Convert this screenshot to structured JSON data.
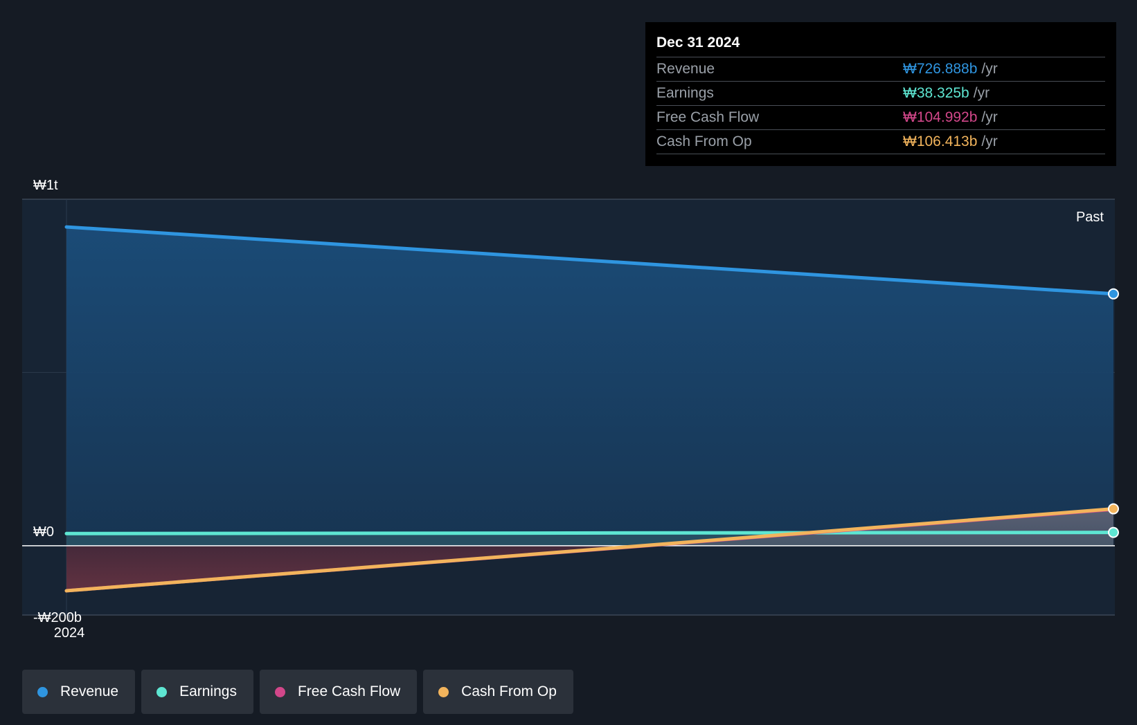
{
  "tooltip": {
    "date": "Dec 31 2024",
    "rows": [
      {
        "label": "Revenue",
        "value": "₩726.888b",
        "unit": "/yr",
        "color": "#2f95e0"
      },
      {
        "label": "Earnings",
        "value": "₩38.325b",
        "unit": "/yr",
        "color": "#5ee6d2"
      },
      {
        "label": "Free Cash Flow",
        "value": "₩104.992b",
        "unit": "/yr",
        "color": "#d2478a"
      },
      {
        "label": "Cash From Op",
        "value": "₩106.413b",
        "unit": "/yr",
        "color": "#f2b45c"
      }
    ]
  },
  "legend": [
    {
      "label": "Revenue",
      "color": "#2f95e0"
    },
    {
      "label": "Earnings",
      "color": "#5ee6d2"
    },
    {
      "label": "Free Cash Flow",
      "color": "#d2478a"
    },
    {
      "label": "Cash From Op",
      "color": "#f2b45c"
    }
  ],
  "chart_data": {
    "type": "area",
    "title": "",
    "xlabel": "",
    "ylabel": "",
    "region_label": "Past",
    "x_tick_labels": [
      "2024"
    ],
    "y_tick_labels": [
      "₩1t",
      "₩0",
      "-₩200b"
    ],
    "y_ticks": [
      1000,
      0,
      -200
    ],
    "ylim": [
      -200,
      1000
    ],
    "x_range": [
      2024.0,
      2025.0
    ],
    "series": [
      {
        "name": "Revenue",
        "color": "#2f95e0",
        "x": [
          2024.0,
          2025.0
        ],
        "values": [
          920,
          726.888
        ]
      },
      {
        "name": "Earnings",
        "color": "#5ee6d2",
        "x": [
          2024.0,
          2025.0
        ],
        "values": [
          35,
          38.325
        ]
      },
      {
        "name": "Free Cash Flow",
        "color": "#d2478a",
        "x": [
          2024.0,
          2025.0
        ],
        "values": [
          -130,
          104.992
        ]
      },
      {
        "name": "Cash From Op",
        "color": "#f2b45c",
        "x": [
          2024.0,
          2025.0
        ],
        "values": [
          -130,
          106.413
        ]
      }
    ]
  }
}
